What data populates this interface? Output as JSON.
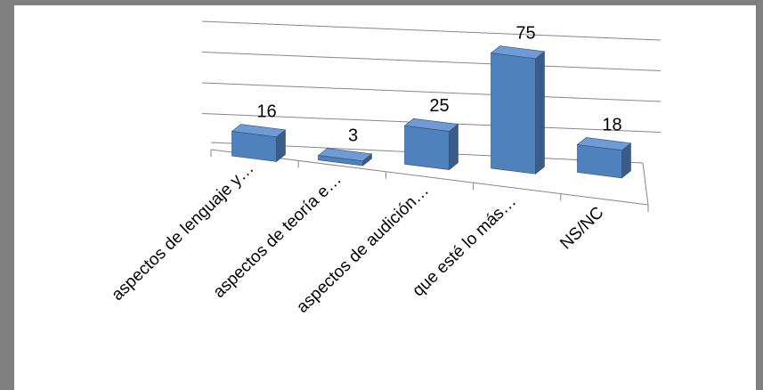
{
  "chart_data": {
    "type": "bar",
    "style": "3d-perspective",
    "categories": [
      "aspectos de lenguaje y…",
      "aspectos de teoría e…",
      "aspectos de audición…",
      "que esté lo más…",
      "NS/NC"
    ],
    "values": [
      16,
      3,
      25,
      75,
      18
    ],
    "data_labels": [
      "16",
      "3",
      "25",
      "75",
      "18"
    ],
    "title": "",
    "xlabel": "",
    "ylabel": "",
    "ylim": [
      0,
      80
    ],
    "grid": true,
    "legend": "none",
    "colors": {
      "bar_front": "#4F81BD",
      "bar_top": "#6F9AD3",
      "bar_side": "#385D8A",
      "bar_edge": "#2F4E77",
      "gridline": "#868686",
      "frame": "#808080"
    }
  }
}
